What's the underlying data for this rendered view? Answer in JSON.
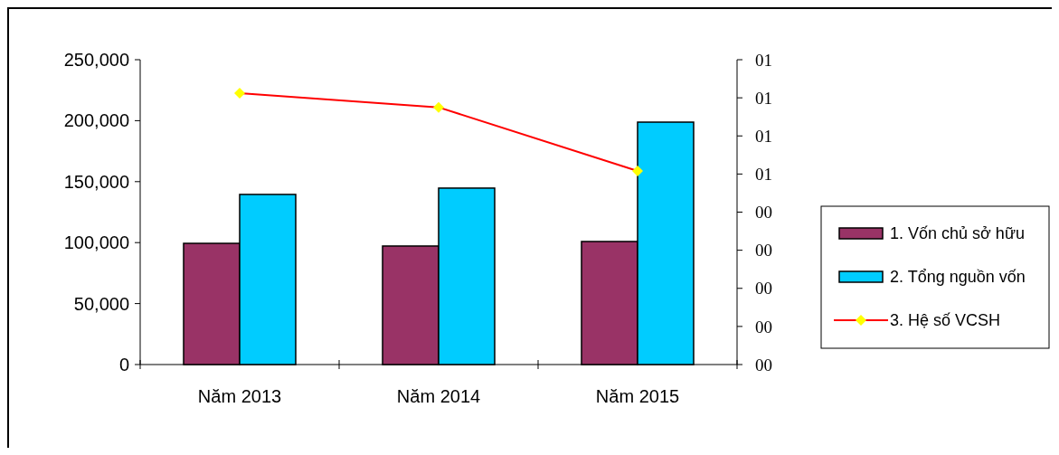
{
  "chart_data": {
    "type": "bar",
    "categories": [
      "Năm 2013",
      "Năm 2014",
      "Năm 2015"
    ],
    "series": [
      {
        "name": "1. Vốn chủ sở hữu",
        "color": "#993366",
        "values": [
          99400,
          97200,
          100900
        ]
      },
      {
        "name": "2. Tổng nguồn vốn",
        "color": "#00ccff",
        "values": [
          139500,
          144700,
          198800
        ]
      },
      {
        "name": "3. Hệ số VCSH",
        "type": "line",
        "axis": "y2",
        "color": "#ff0000",
        "marker": "diamond",
        "values": [
          0.712,
          0.675,
          0.508
        ]
      }
    ],
    "ylim": [
      0,
      250000
    ],
    "yticks": [
      {
        "value": 0,
        "label": "0"
      },
      {
        "value": 50000,
        "label": "50,000"
      },
      {
        "value": 100000,
        "label": "100,000"
      },
      {
        "value": 150000,
        "label": "150,000"
      },
      {
        "value": 200000,
        "label": "200,000"
      },
      {
        "value": 250000,
        "label": "250,000"
      }
    ],
    "y2lim": [
      0,
      0.8
    ],
    "y2ticks": [
      {
        "value": 0,
        "label": "00"
      },
      {
        "value": 0.1,
        "label": "00"
      },
      {
        "value": 0.2,
        "label": "00"
      },
      {
        "value": 0.3,
        "label": "00"
      },
      {
        "value": 0.4,
        "label": "00"
      },
      {
        "value": 0.5,
        "label": "01"
      },
      {
        "value": 0.6,
        "label": "01"
      },
      {
        "value": 0.7,
        "label": "01"
      },
      {
        "value": 0.8,
        "label": "01"
      }
    ],
    "grid": false,
    "legend": "right"
  }
}
